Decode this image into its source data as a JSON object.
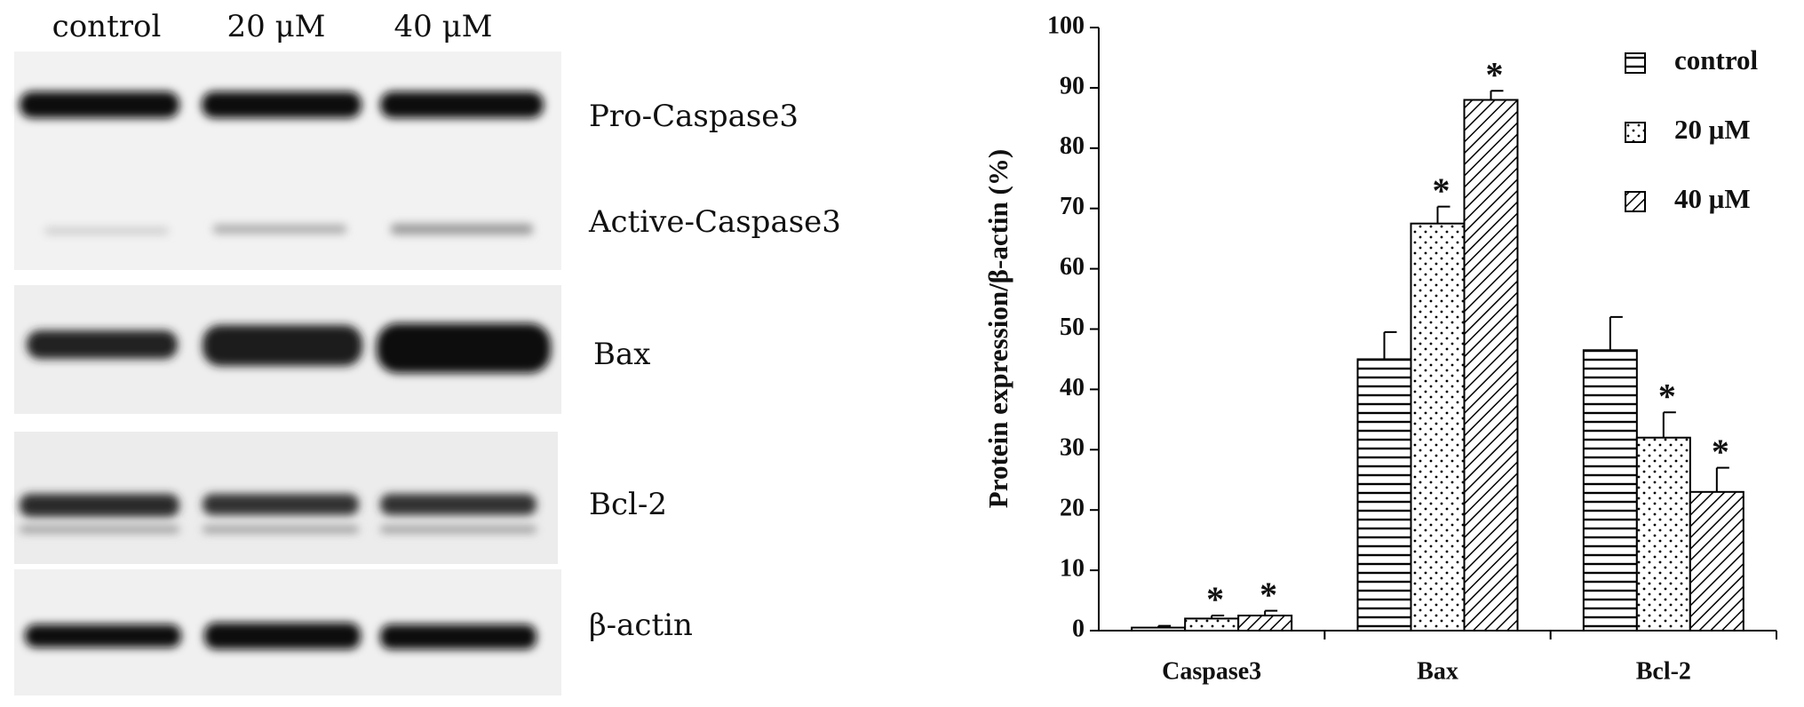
{
  "blot": {
    "lanes": [
      "control",
      "20 μM",
      "40 μM"
    ],
    "bands": [
      "Pro-Caspase3",
      "Active-Caspase3",
      "Bax",
      "Bcl-2",
      "β-actin"
    ]
  },
  "chart_data": {
    "type": "bar",
    "ylabel": "Protein expression/β-actin (%)",
    "categories": [
      "Caspase3",
      "Bax",
      "Bcl-2"
    ],
    "series": [
      {
        "name": "control",
        "color": "#000000",
        "pattern": "horizontal",
        "values": [
          0.5,
          45,
          46.5
        ],
        "errors": [
          0.3,
          4.5,
          5.5
        ]
      },
      {
        "name": "20 μM",
        "color": "#000000",
        "pattern": "dots",
        "values": [
          2,
          67.5,
          32
        ],
        "errors": [
          0.5,
          2.8,
          4.2
        ],
        "annotations": [
          "*",
          "*",
          "*"
        ]
      },
      {
        "name": "40 μM",
        "color": "#000000",
        "pattern": "diagonal",
        "values": [
          2.5,
          88,
          23
        ],
        "errors": [
          0.8,
          1.5,
          4
        ],
        "annotations": [
          "*",
          "*",
          "*"
        ]
      }
    ],
    "ylim": [
      0,
      100
    ],
    "yticks": [
      0,
      10,
      20,
      30,
      40,
      50,
      60,
      70,
      80,
      90,
      100
    ],
    "legend": "upper right"
  }
}
